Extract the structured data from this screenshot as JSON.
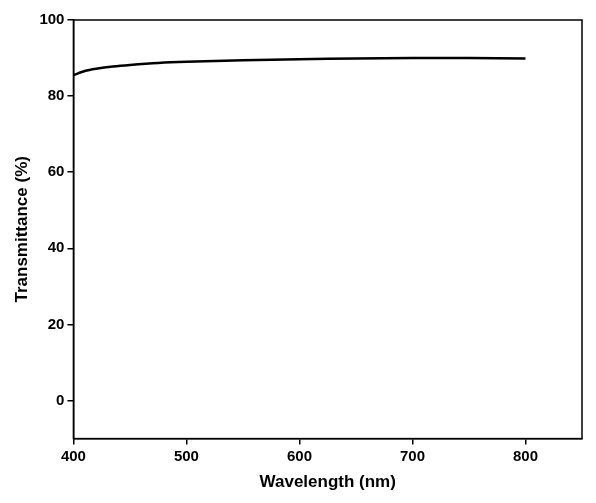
{
  "chart_data": {
    "type": "line",
    "xlabel": "Wavelength (nm)",
    "ylabel": "Transmittance (%)",
    "x": [
      400,
      410,
      420,
      435,
      450,
      475,
      500,
      550,
      600,
      650,
      700,
      750,
      800
    ],
    "values": [
      85.5,
      86.6,
      87.2,
      87.8,
      88.2,
      88.7,
      89.0,
      89.4,
      89.7,
      89.9,
      90.0,
      90.0,
      89.9
    ],
    "color": "#000000",
    "xlim": [
      400,
      850
    ],
    "ylim": [
      -10,
      100
    ],
    "xticks": [
      400,
      500,
      600,
      700,
      800
    ],
    "yticks": [
      0,
      20,
      40,
      60,
      80,
      100
    ],
    "grid": false
  }
}
